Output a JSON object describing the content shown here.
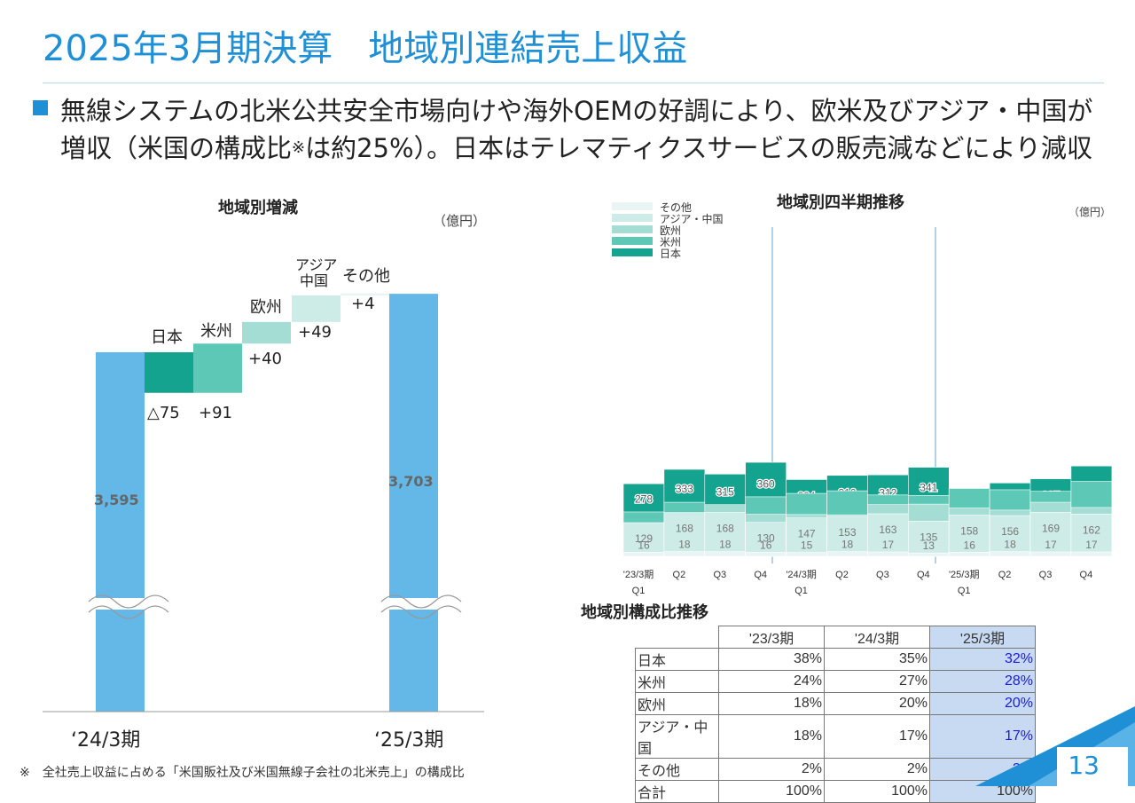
{
  "page": {
    "title": "2025年3月期決算　地域別連結売上収益",
    "headline_line1": "無線システムの北米公共安全市場向けや海外OEMの好調により、欧米及びアジア・中国が",
    "headline_line2_a": "増収（米国の構成比",
    "headline_line2_mark": "※",
    "headline_line2_b": "は約25%）。日本はテレマティクスサービスの販売減などにより減収",
    "footnote": "※　全社売上収益に占める「米国販社及び米国無線子会社の北米売上」の構成比",
    "page_number": "13"
  },
  "colors": {
    "title_blue": "#1f8fd6",
    "total_bar": "#63b8e8",
    "japan": "#13a38e",
    "usa": "#5ec8b6",
    "europe": "#a3ddd4",
    "asia_china": "#cdece7",
    "other": "#e8f5f3",
    "highlight_cell": "#c8daf2"
  },
  "chart_data": [
    {
      "type": "bar",
      "variant": "waterfall",
      "title": "地域別増減",
      "unit": "（億円）",
      "categories": [
        "‘24/3期",
        "日本",
        "米州",
        "欧州",
        "アジア\n中国",
        "その他",
        "‘25/3期"
      ],
      "values": [
        3595,
        -75,
        91,
        40,
        49,
        4,
        3703
      ],
      "value_labels": [
        "3,595",
        "△75",
        "+91",
        "+40",
        "+49",
        "+4",
        "3,703"
      ],
      "axis_break": true
    },
    {
      "type": "bar",
      "variant": "stacked",
      "title": "地域別四半期推移",
      "unit": "（億円）",
      "categories": [
        "'23/3期 Q1",
        "Q2",
        "Q3",
        "Q4",
        "'24/3期 Q1",
        "Q2",
        "Q3",
        "Q4",
        "'25/3期 Q1",
        "Q2",
        "Q3",
        "Q4"
      ],
      "category_lines": [
        [
          "'23/3期",
          "Q1"
        ],
        [
          "Q2",
          ""
        ],
        [
          "Q3",
          ""
        ],
        [
          "Q4",
          ""
        ],
        [
          "'24/3期",
          "Q1"
        ],
        [
          "Q2",
          ""
        ],
        [
          "Q3",
          ""
        ],
        [
          "Q4",
          ""
        ],
        [
          "'25/3期",
          "Q1"
        ],
        [
          "Q2",
          ""
        ],
        [
          "Q3",
          ""
        ],
        [
          "Q4",
          ""
        ]
      ],
      "legend": [
        "その他",
        "アジア・中国",
        "欧州",
        "米州",
        "日本"
      ],
      "series": [
        {
          "name": "日本",
          "values": [
            278,
            333,
            315,
            360,
            294,
            310,
            312,
            341,
            259,
            281,
            297,
            346
          ]
        },
        {
          "name": "米州",
          "values": [
            170,
            207,
            196,
            228,
            241,
            251,
            235,
            233,
            260,
            255,
            249,
            287
          ]
        },
        {
          "name": "欧州",
          "values": [
            127,
            135,
            198,
            161,
            160,
            159,
            198,
            200,
            185,
            177,
            207,
            187
          ]
        },
        {
          "name": "アジア・中国",
          "values": [
            129,
            168,
            168,
            130,
            147,
            153,
            163,
            135,
            158,
            156,
            169,
            162
          ]
        },
        {
          "name": "その他",
          "values": [
            16,
            18,
            18,
            16,
            15,
            18,
            17,
            13,
            16,
            18,
            17,
            17
          ]
        }
      ],
      "period_separators": true
    },
    {
      "type": "table",
      "title": "地域別構成比推移",
      "columns": [
        "'23/3期",
        "'24/3期",
        "'25/3期"
      ],
      "rows": [
        {
          "label": "日本",
          "values": [
            "38%",
            "35%",
            "32%"
          ]
        },
        {
          "label": "米州",
          "values": [
            "24%",
            "27%",
            "28%"
          ]
        },
        {
          "label": "欧州",
          "values": [
            "18%",
            "20%",
            "20%"
          ]
        },
        {
          "label": "アジア・中国",
          "values": [
            "18%",
            "17%",
            "17%"
          ]
        },
        {
          "label": "その他",
          "values": [
            "2%",
            "2%",
            "2%"
          ]
        },
        {
          "label": "合計",
          "values": [
            "100%",
            "100%",
            "100%"
          ]
        }
      ],
      "highlight_column": 2
    }
  ]
}
